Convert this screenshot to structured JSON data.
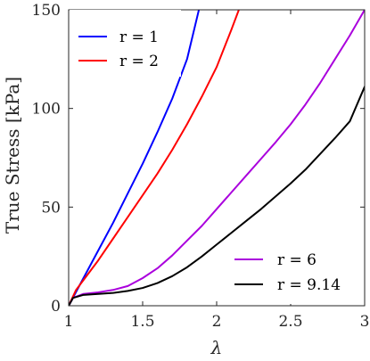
{
  "chart_data": {
    "type": "line",
    "title": "",
    "xlabel": "λ",
    "ylabel": "True Stress [kPa]",
    "xlim": [
      1,
      3
    ],
    "ylim": [
      0,
      150
    ],
    "xticks": [
      1,
      1.5,
      2,
      2.5,
      3
    ],
    "xtick_labels": [
      "1",
      "1.5",
      "2",
      "2.5",
      "3"
    ],
    "yticks": [
      0,
      50,
      100,
      150
    ],
    "ytick_labels": [
      "0",
      "50",
      "100",
      "150"
    ],
    "grid": false,
    "series": [
      {
        "name": "r = 1",
        "color": "#0000ff",
        "x": [
          1.0,
          1.1,
          1.2,
          1.3,
          1.4,
          1.5,
          1.6,
          1.7,
          1.8,
          1.88
        ],
        "y": [
          0,
          14,
          28,
          42,
          57,
          72,
          88,
          105,
          125,
          150
        ]
      },
      {
        "name": "r = 2",
        "color": "#ff0000",
        "x": [
          1.0,
          1.05,
          1.1,
          1.2,
          1.3,
          1.4,
          1.5,
          1.6,
          1.7,
          1.8,
          1.9,
          2.0,
          2.1,
          2.15
        ],
        "y": [
          0,
          8,
          13,
          23,
          34,
          45,
          56,
          67,
          79,
          92,
          106,
          121,
          140,
          150
        ]
      },
      {
        "name": "r = 6",
        "color": "#aa00dd",
        "x": [
          1.0,
          1.03,
          1.1,
          1.2,
          1.3,
          1.4,
          1.5,
          1.6,
          1.7,
          1.8,
          1.9,
          2.0,
          2.1,
          2.2,
          2.3,
          2.4,
          2.5,
          2.6,
          2.7,
          2.8,
          2.9,
          3.0
        ],
        "y": [
          0,
          4,
          6,
          6.8,
          8,
          10,
          14,
          19,
          25.5,
          33,
          40.5,
          49,
          57.5,
          66,
          74.5,
          83,
          92,
          102,
          113,
          125,
          137,
          150
        ]
      },
      {
        "name": "r = 9.14",
        "color": "#000000",
        "x": [
          1.0,
          1.03,
          1.1,
          1.2,
          1.3,
          1.4,
          1.5,
          1.6,
          1.7,
          1.8,
          1.9,
          2.0,
          2.1,
          2.2,
          2.3,
          2.4,
          2.5,
          2.6,
          2.7,
          2.8,
          2.9,
          3.0
        ],
        "y": [
          0,
          4,
          5.5,
          6,
          6.5,
          7.5,
          9,
          11.5,
          15,
          19.5,
          25,
          31,
          37,
          43,
          49,
          55.5,
          62,
          69,
          77,
          85,
          93.5,
          111
        ]
      }
    ],
    "legends": [
      {
        "position": "top-left",
        "entries": [
          "r = 1",
          "r = 2"
        ]
      },
      {
        "position": "bottom-right",
        "entries": [
          "r = 6",
          "r = 9.14"
        ]
      }
    ]
  }
}
